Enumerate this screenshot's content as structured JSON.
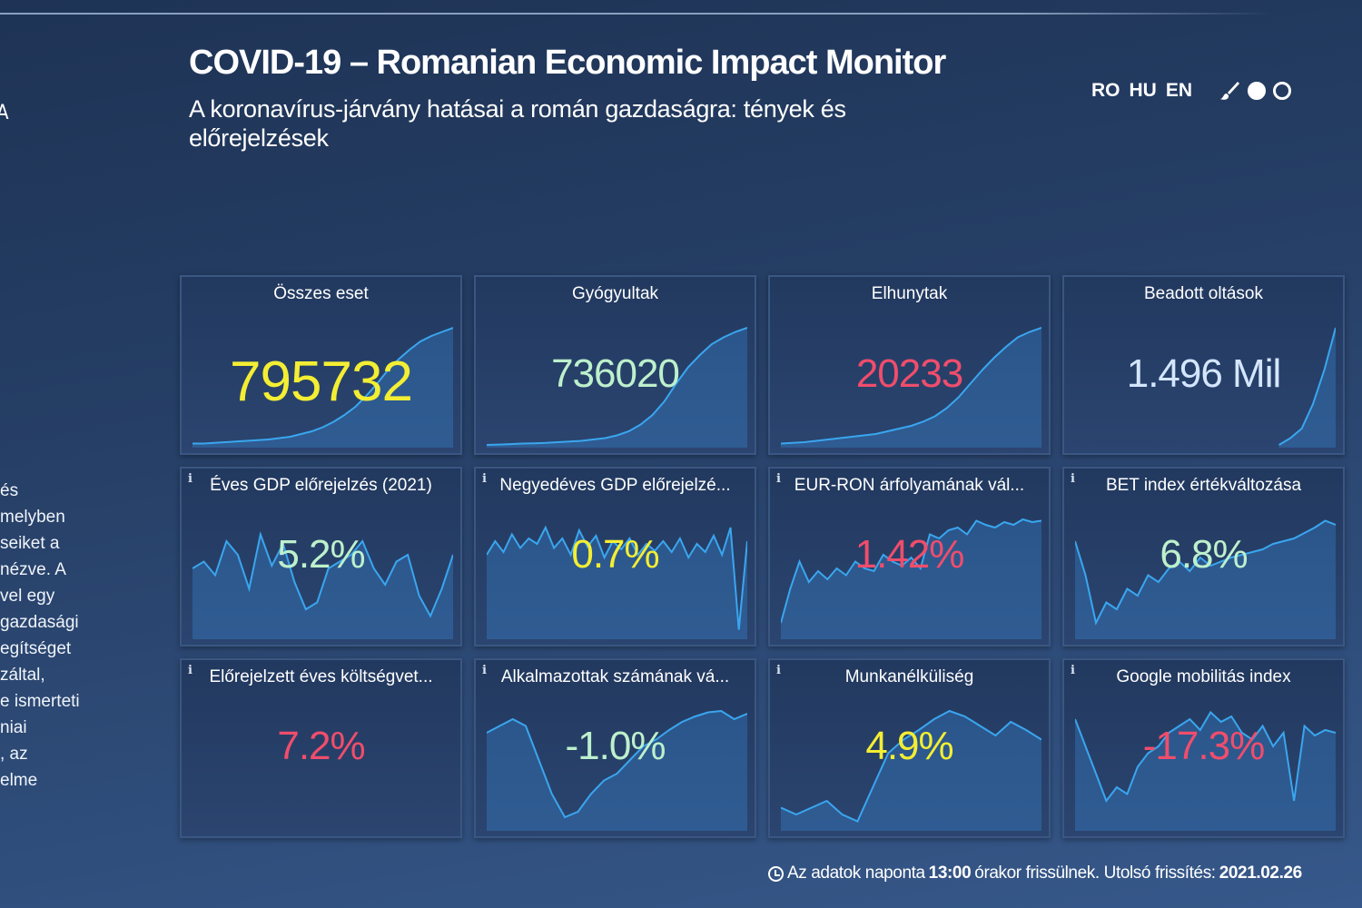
{
  "header": {
    "title": "COVID-19 – Romanian Economic Impact Monitor",
    "subtitle": "A koronavírus-járvány hatásai a román gazdaságra: tények és előrejelzések",
    "languages": [
      "RO",
      "HU",
      "EN"
    ],
    "theme_icons": [
      "paintbrush-icon",
      "filled-circle-icon",
      "empty-circle-icon"
    ]
  },
  "sidebar_fragment": {
    "edge_letter": "A",
    "lines": [
      "és",
      "melyben",
      "seiket a",
      "nézve. A",
      "vel egy",
      "gazdasági",
      "egítséget",
      "záltal,",
      "e ismerteti",
      "niai",
      ", az",
      "elme"
    ]
  },
  "colors": {
    "yellow": "#f3ee33",
    "mint": "#bdf0cc",
    "red": "#f04d6c",
    "light": "#d4e6ff",
    "line": "#3aa6ef"
  },
  "cards": [
    {
      "label": "Összes eset",
      "value": "795732",
      "color": "yellow",
      "big": true,
      "spark": [
        1,
        1,
        1.5,
        2,
        2.5,
        3,
        3.5,
        4,
        5,
        6,
        8,
        10,
        13,
        17,
        22,
        28,
        36,
        45,
        55,
        63,
        70,
        76,
        80,
        83,
        86
      ]
    },
    {
      "label": "Gyógyultak",
      "value": "736020",
      "color": "mint",
      "spark": [
        0,
        0.3,
        0.6,
        1,
        1.2,
        1.5,
        2,
        2.5,
        3,
        4,
        5,
        7,
        10,
        15,
        22,
        32,
        45,
        57,
        66,
        74,
        79,
        83,
        86
      ]
    },
    {
      "label": "Elhunytak",
      "value": "20233",
      "color": "red",
      "spark": [
        1,
        1.5,
        2,
        3,
        4,
        5,
        6,
        7,
        8,
        10,
        12,
        14,
        17,
        21,
        27,
        35,
        45,
        55,
        64,
        72,
        79,
        83,
        86
      ]
    },
    {
      "label": "Beadott oltások",
      "value": "1.496 Mil",
      "color": "light",
      "spark": [
        null,
        null,
        null,
        null,
        null,
        null,
        null,
        null,
        null,
        null,
        null,
        null,
        null,
        null,
        null,
        null,
        null,
        null,
        0,
        5,
        12,
        30,
        55,
        86
      ]
    },
    {
      "label": "Éves GDP előrejelzés (2021)",
      "value": "5.2%",
      "color": "mint",
      "info": true,
      "spark": [
        50,
        55,
        45,
        70,
        60,
        35,
        75,
        52,
        68,
        40,
        20,
        25,
        50,
        55,
        60,
        70,
        50,
        38,
        55,
        60,
        30,
        15,
        35,
        60
      ]
    },
    {
      "label": "Negyedéves GDP előrejelzé...",
      "value": "0.7%",
      "color": "yellow",
      "info": true,
      "spark": [
        60,
        70,
        62,
        75,
        65,
        72,
        68,
        80,
        65,
        72,
        60,
        78,
        66,
        74,
        58,
        70,
        64,
        72,
        60,
        68,
        63,
        70,
        62,
        72,
        58,
        68,
        62,
        74,
        60,
        80,
        5,
        70
      ]
    },
    {
      "label": "EUR-RON árfolyamának vál...",
      "value": "1.42%",
      "color": "red",
      "info": true,
      "spark": [
        10,
        35,
        55,
        40,
        48,
        42,
        50,
        45,
        55,
        50,
        48,
        60,
        55,
        52,
        58,
        50,
        75,
        72,
        78,
        80,
        75,
        85,
        82,
        80,
        84,
        82,
        86,
        84,
        85
      ]
    },
    {
      "label": "BET index értékváltozása",
      "value": "6.8%",
      "color": "mint",
      "info": true,
      "spark": [
        70,
        45,
        10,
        25,
        20,
        35,
        30,
        45,
        40,
        50,
        55,
        48,
        58,
        52,
        55,
        58,
        60,
        62,
        64,
        68,
        70,
        72,
        76,
        80,
        85,
        82
      ]
    },
    {
      "label": "Előrejelzett éves költségvet...",
      "value": "7.2%",
      "color": "red",
      "info": true,
      "spark": []
    },
    {
      "label": "Alkalmazottak számának vá...",
      "value": "-1.0%",
      "color": "mint",
      "info": true,
      "spark": [
        70,
        75,
        80,
        75,
        50,
        25,
        8,
        12,
        25,
        35,
        40,
        50,
        60,
        65,
        72,
        78,
        82,
        85,
        86,
        80,
        84
      ]
    },
    {
      "label": "Munkanélküliség",
      "value": "4.9%",
      "color": "yellow",
      "info": true,
      "spark": [
        15,
        10,
        15,
        20,
        10,
        5,
        30,
        55,
        65,
        72,
        80,
        86,
        82,
        75,
        68,
        78,
        72,
        65
      ]
    },
    {
      "label": "Google mobilitás index",
      "value": "-17.3%",
      "color": "red",
      "info": true,
      "spark": [
        80,
        60,
        40,
        20,
        30,
        25,
        45,
        55,
        60,
        70,
        75,
        80,
        72,
        85,
        78,
        82,
        70,
        65,
        75,
        60,
        70,
        20,
        75,
        68,
        72,
        70
      ]
    }
  ],
  "footer": {
    "text_1": "Az adatok naponta",
    "time": "13:00",
    "text_2": "órakor frissülnek. Utolsó frissítés:",
    "date": "2021.02.26"
  }
}
